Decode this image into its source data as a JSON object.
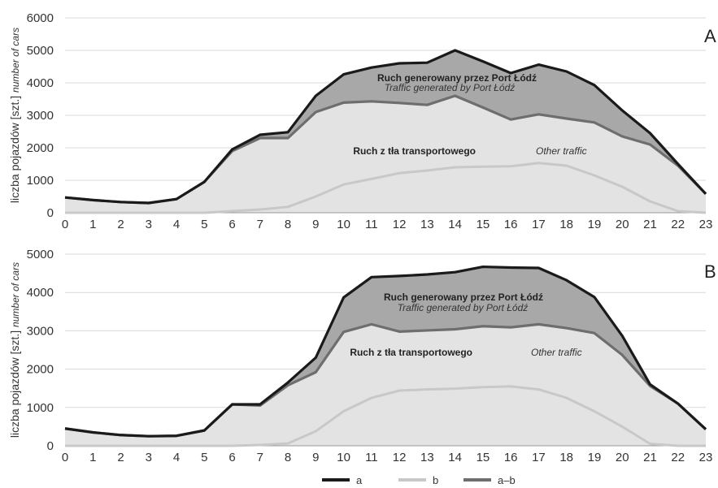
{
  "figure": {
    "ylabel_pl": "liczba pojazdów [szt.]",
    "ylabel_en": "number of cars",
    "legend": [
      {
        "label": "a",
        "color": "#1a1a1a"
      },
      {
        "label": "b",
        "color": "#c8c8c8"
      },
      {
        "label": "a–b",
        "color": "#6e6e6e"
      }
    ]
  },
  "colors": {
    "line_a": "#1a1a1a",
    "line_b": "#c8c8c8",
    "line_amb": "#6e6e6e",
    "fill_upper": "#a8a8a8",
    "fill_lower": "#e3e3e3",
    "grid": "#d9d9d9",
    "axis": "#9a9a9a"
  },
  "chart_data": [
    {
      "type": "area",
      "panel_label": "A",
      "x": [
        0,
        1,
        2,
        3,
        4,
        5,
        6,
        7,
        8,
        9,
        10,
        11,
        12,
        13,
        14,
        15,
        16,
        17,
        18,
        19,
        20,
        21,
        22,
        23
      ],
      "ylim": [
        0,
        6000
      ],
      "yticks": [
        0,
        1000,
        2000,
        3000,
        4000,
        5000,
        6000
      ],
      "grid": true,
      "series": [
        {
          "name": "a",
          "values": [
            470,
            390,
            330,
            300,
            420,
            950,
            1950,
            2400,
            2480,
            3600,
            4260,
            4470,
            4600,
            4620,
            5000,
            4660,
            4300,
            4560,
            4350,
            3930,
            3150,
            2450,
            1500,
            580
          ]
        },
        {
          "name": "b",
          "values": [
            0,
            0,
            0,
            0,
            0,
            0,
            50,
            100,
            180,
            500,
            870,
            1040,
            1220,
            1300,
            1400,
            1420,
            1430,
            1530,
            1450,
            1150,
            800,
            350,
            50,
            0
          ]
        },
        {
          "name": "a–b",
          "values": [
            470,
            390,
            330,
            300,
            420,
            950,
            1900,
            2300,
            2300,
            3100,
            3390,
            3430,
            3380,
            3320,
            3600,
            3240,
            2870,
            3030,
            2900,
            2780,
            2350,
            2100,
            1450,
            580
          ]
        }
      ],
      "annotations": [
        {
          "text": "Ruch generowany przez Port Łódź",
          "style": "bold"
        },
        {
          "text": "Traffic generated by Port Łódź",
          "style": "italic"
        },
        {
          "text": "Ruch z tła transportowego",
          "style": "bold"
        },
        {
          "text": "Other traffic",
          "style": "italic"
        }
      ]
    },
    {
      "type": "area",
      "panel_label": "B",
      "x": [
        0,
        1,
        2,
        3,
        4,
        5,
        6,
        7,
        8,
        9,
        10,
        11,
        12,
        13,
        14,
        15,
        16,
        17,
        18,
        19,
        20,
        21,
        22,
        23
      ],
      "ylim": [
        0,
        5000
      ],
      "yticks": [
        0,
        1000,
        2000,
        3000,
        4000,
        5000
      ],
      "grid": true,
      "series": [
        {
          "name": "a",
          "values": [
            450,
            350,
            280,
            250,
            260,
            400,
            1080,
            1080,
            1650,
            2300,
            3870,
            4400,
            4430,
            4470,
            4530,
            4670,
            4650,
            4640,
            4320,
            3880,
            2870,
            1600,
            1100,
            430
          ]
        },
        {
          "name": "b",
          "values": [
            0,
            0,
            0,
            0,
            0,
            0,
            0,
            20,
            60,
            380,
            900,
            1250,
            1440,
            1470,
            1490,
            1530,
            1550,
            1470,
            1250,
            900,
            500,
            50,
            0,
            0
          ]
        },
        {
          "name": "a–b",
          "values": [
            450,
            350,
            280,
            250,
            260,
            400,
            1080,
            1050,
            1580,
            1920,
            2970,
            3170,
            2980,
            3010,
            3040,
            3120,
            3090,
            3170,
            3070,
            2940,
            2370,
            1560,
            1100,
            430
          ]
        }
      ],
      "annotations": [
        {
          "text": "Ruch generowany przez Port Łódź",
          "style": "bold"
        },
        {
          "text": "Traffic generated by Port Łódź",
          "style": "italic"
        },
        {
          "text": "Ruch z tła transportowego",
          "style": "bold"
        },
        {
          "text": "Other traffic",
          "style": "italic"
        }
      ]
    }
  ]
}
